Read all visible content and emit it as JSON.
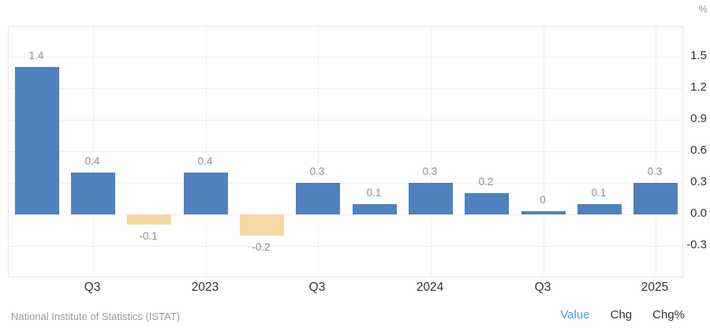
{
  "y_axis": {
    "unit": "%",
    "tick_labels": [
      "1.5",
      "1.2",
      "0.9",
      "0.6",
      "0.3",
      "0.0",
      "-0.3"
    ]
  },
  "footer": {
    "source": "National Institute of Statistics (ISTAT)",
    "modes": [
      {
        "label": "Value",
        "active": true
      },
      {
        "label": "Chg",
        "active": false
      },
      {
        "label": "Chg%",
        "active": false
      }
    ]
  },
  "colors": {
    "positive_bar": "#4e81bd",
    "negative_bar": "#f2d9a6",
    "grid": "#efefef",
    "plot_border": "#e7e7e7",
    "bar_value_label": "#8e8e8e",
    "axis_label": "#333333",
    "unit_label": "#999999",
    "source_text": "#9a9a9a",
    "active_mode": "#4aa1d8"
  },
  "chart_data": {
    "type": "bar",
    "title": "",
    "categories": [
      "",
      "Q3",
      "",
      "2023",
      "",
      "Q3",
      "",
      "2024",
      "",
      "Q3",
      "",
      "2025"
    ],
    "values": [
      1.4,
      0.4,
      -0.1,
      0.4,
      -0.2,
      0.3,
      0.1,
      0.3,
      0.2,
      0,
      0.1,
      0.3
    ],
    "data_labels": [
      "1.4",
      "0.4",
      "-0.1",
      "0.4",
      "-0.2",
      "0.3",
      "0.1",
      "0.3",
      "0.2",
      "0",
      "0.1",
      "0.3"
    ],
    "xlabel": "",
    "ylabel": "%",
    "y_ticks": [
      1.5,
      1.2,
      0.9,
      0.6,
      0.3,
      0.0,
      -0.3
    ],
    "ylim": [
      -0.61,
      1.79
    ],
    "grid": true,
    "legend": false,
    "positive_color": "#4e81bd",
    "negative_color": "#f2d9a6",
    "source": "National Institute of Statistics (ISTAT)"
  }
}
